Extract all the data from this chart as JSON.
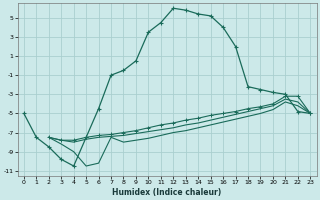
{
  "xlabel": "Humidex (Indice chaleur)",
  "bg_color": "#cce9e9",
  "grid_color": "#aacfcf",
  "line_color": "#1a6b5a",
  "xlim": [
    -0.5,
    23.5
  ],
  "ylim": [
    -11.5,
    6.5
  ],
  "xticks": [
    0,
    1,
    2,
    3,
    4,
    5,
    6,
    7,
    8,
    9,
    10,
    11,
    12,
    13,
    14,
    15,
    16,
    17,
    18,
    19,
    20,
    21,
    22,
    23
  ],
  "yticks": [
    -11,
    -9,
    -7,
    -5,
    -3,
    -1,
    1,
    3,
    5
  ],
  "curve1_x": [
    0,
    1,
    2,
    3,
    4,
    5,
    6,
    7,
    8,
    9,
    10,
    11,
    12,
    13,
    14,
    15,
    16,
    17,
    18,
    19,
    20,
    21,
    22,
    23
  ],
  "curve1_y": [
    -5.0,
    -7.5,
    -8.5,
    -9.8,
    -10.5,
    -7.5,
    -4.5,
    -1.0,
    -0.5,
    0.5,
    3.5,
    4.5,
    6.0,
    5.8,
    5.4,
    5.2,
    4.0,
    2.0,
    -2.2,
    -2.5,
    -2.8,
    -3.0,
    -4.8,
    -5.0
  ],
  "curve2_x": [
    2,
    3,
    4,
    5,
    6,
    7,
    8,
    9,
    10,
    11,
    12,
    13,
    14,
    15,
    16,
    17,
    18,
    19,
    20,
    21,
    22,
    23
  ],
  "curve2_y": [
    -7.5,
    -7.8,
    -7.8,
    -7.5,
    -7.3,
    -7.2,
    -7.0,
    -6.8,
    -6.5,
    -6.2,
    -6.0,
    -5.7,
    -5.5,
    -5.2,
    -5.0,
    -4.8,
    -4.5,
    -4.3,
    -4.0,
    -3.2,
    -3.2,
    -5.0
  ],
  "curve3_x": [
    2,
    3,
    4,
    5,
    6,
    7,
    8,
    9,
    10,
    11,
    12,
    13,
    14,
    15,
    16,
    17,
    18,
    19,
    20,
    21,
    22,
    23
  ],
  "curve3_y": [
    -7.5,
    -7.8,
    -8.0,
    -7.7,
    -7.5,
    -7.4,
    -7.3,
    -7.1,
    -6.9,
    -6.7,
    -6.5,
    -6.2,
    -6.0,
    -5.7,
    -5.4,
    -5.1,
    -4.8,
    -4.5,
    -4.2,
    -3.5,
    -3.8,
    -5.0
  ],
  "curve4_x": [
    2,
    3,
    4,
    5,
    6,
    7,
    8,
    9,
    10,
    11,
    12,
    13,
    14,
    15,
    16,
    17,
    18,
    19,
    20,
    21,
    22,
    23
  ],
  "curve4_y": [
    -7.5,
    -8.2,
    -9.0,
    -10.5,
    -10.2,
    -7.5,
    -8.0,
    -7.8,
    -7.6,
    -7.3,
    -7.0,
    -6.8,
    -6.5,
    -6.2,
    -5.9,
    -5.6,
    -5.3,
    -5.0,
    -4.6,
    -3.8,
    -4.2,
    -5.0
  ]
}
